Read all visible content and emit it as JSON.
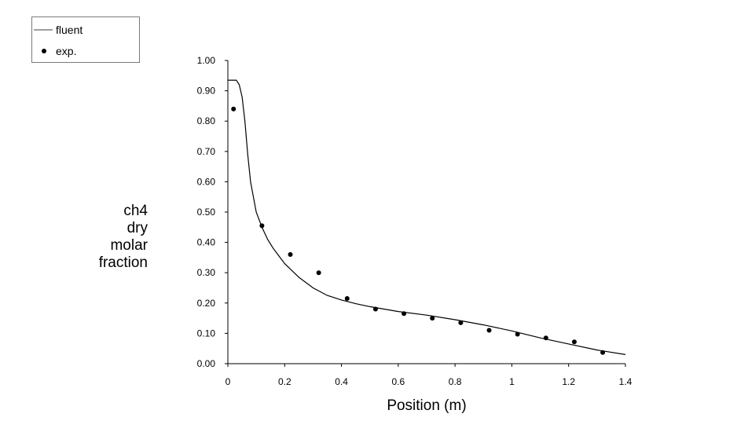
{
  "legend": {
    "items": [
      {
        "label": "fluent",
        "symbol": "line"
      },
      {
        "label": "exp.",
        "symbol": "dot"
      }
    ]
  },
  "chart_data": {
    "type": "line",
    "title": "",
    "xlabel": "Position (m)",
    "ylabel_lines": [
      "ch4",
      "dry",
      "molar",
      "fraction"
    ],
    "xlim": [
      0,
      1.4
    ],
    "ylim": [
      0,
      1.0
    ],
    "xticks": [
      0,
      0.2,
      0.4,
      0.6,
      0.8,
      1,
      1.2,
      1.4
    ],
    "xtick_labels": [
      "0",
      "0.2",
      "0.4",
      "0.6",
      "0.8",
      "1",
      "1.2",
      "1.4"
    ],
    "yticks": [
      0,
      0.1,
      0.2,
      0.3,
      0.4,
      0.5,
      0.6,
      0.7,
      0.8,
      0.9,
      1.0
    ],
    "ytick_labels": [
      "0.00",
      "0.10",
      "0.20",
      "0.30",
      "0.40",
      "0.50",
      "0.60",
      "0.70",
      "0.80",
      "0.90",
      "1.00"
    ],
    "grid": false,
    "legend_position": "top-left",
    "series": [
      {
        "name": "fluent",
        "style": "line",
        "color": "#000000",
        "x": [
          0,
          0.03,
          0.04,
          0.05,
          0.06,
          0.07,
          0.08,
          0.09,
          0.1,
          0.12,
          0.14,
          0.16,
          0.18,
          0.2,
          0.25,
          0.3,
          0.35,
          0.4,
          0.45,
          0.5,
          0.6,
          0.7,
          0.8,
          0.9,
          1.0,
          1.1,
          1.2,
          1.3,
          1.4
        ],
        "y": [
          0.935,
          0.935,
          0.92,
          0.88,
          0.8,
          0.69,
          0.6,
          0.55,
          0.5,
          0.45,
          0.41,
          0.38,
          0.355,
          0.33,
          0.285,
          0.25,
          0.225,
          0.21,
          0.198,
          0.188,
          0.172,
          0.16,
          0.145,
          0.128,
          0.108,
          0.085,
          0.065,
          0.045,
          0.03
        ]
      },
      {
        "name": "exp.",
        "style": "scatter",
        "color": "#000000",
        "x": [
          0.02,
          0.12,
          0.22,
          0.32,
          0.42,
          0.52,
          0.62,
          0.72,
          0.82,
          0.92,
          1.02,
          1.12,
          1.22,
          1.32
        ],
        "y": [
          0.84,
          0.455,
          0.36,
          0.3,
          0.215,
          0.18,
          0.165,
          0.15,
          0.135,
          0.11,
          0.097,
          0.085,
          0.072,
          0.037
        ]
      }
    ]
  }
}
